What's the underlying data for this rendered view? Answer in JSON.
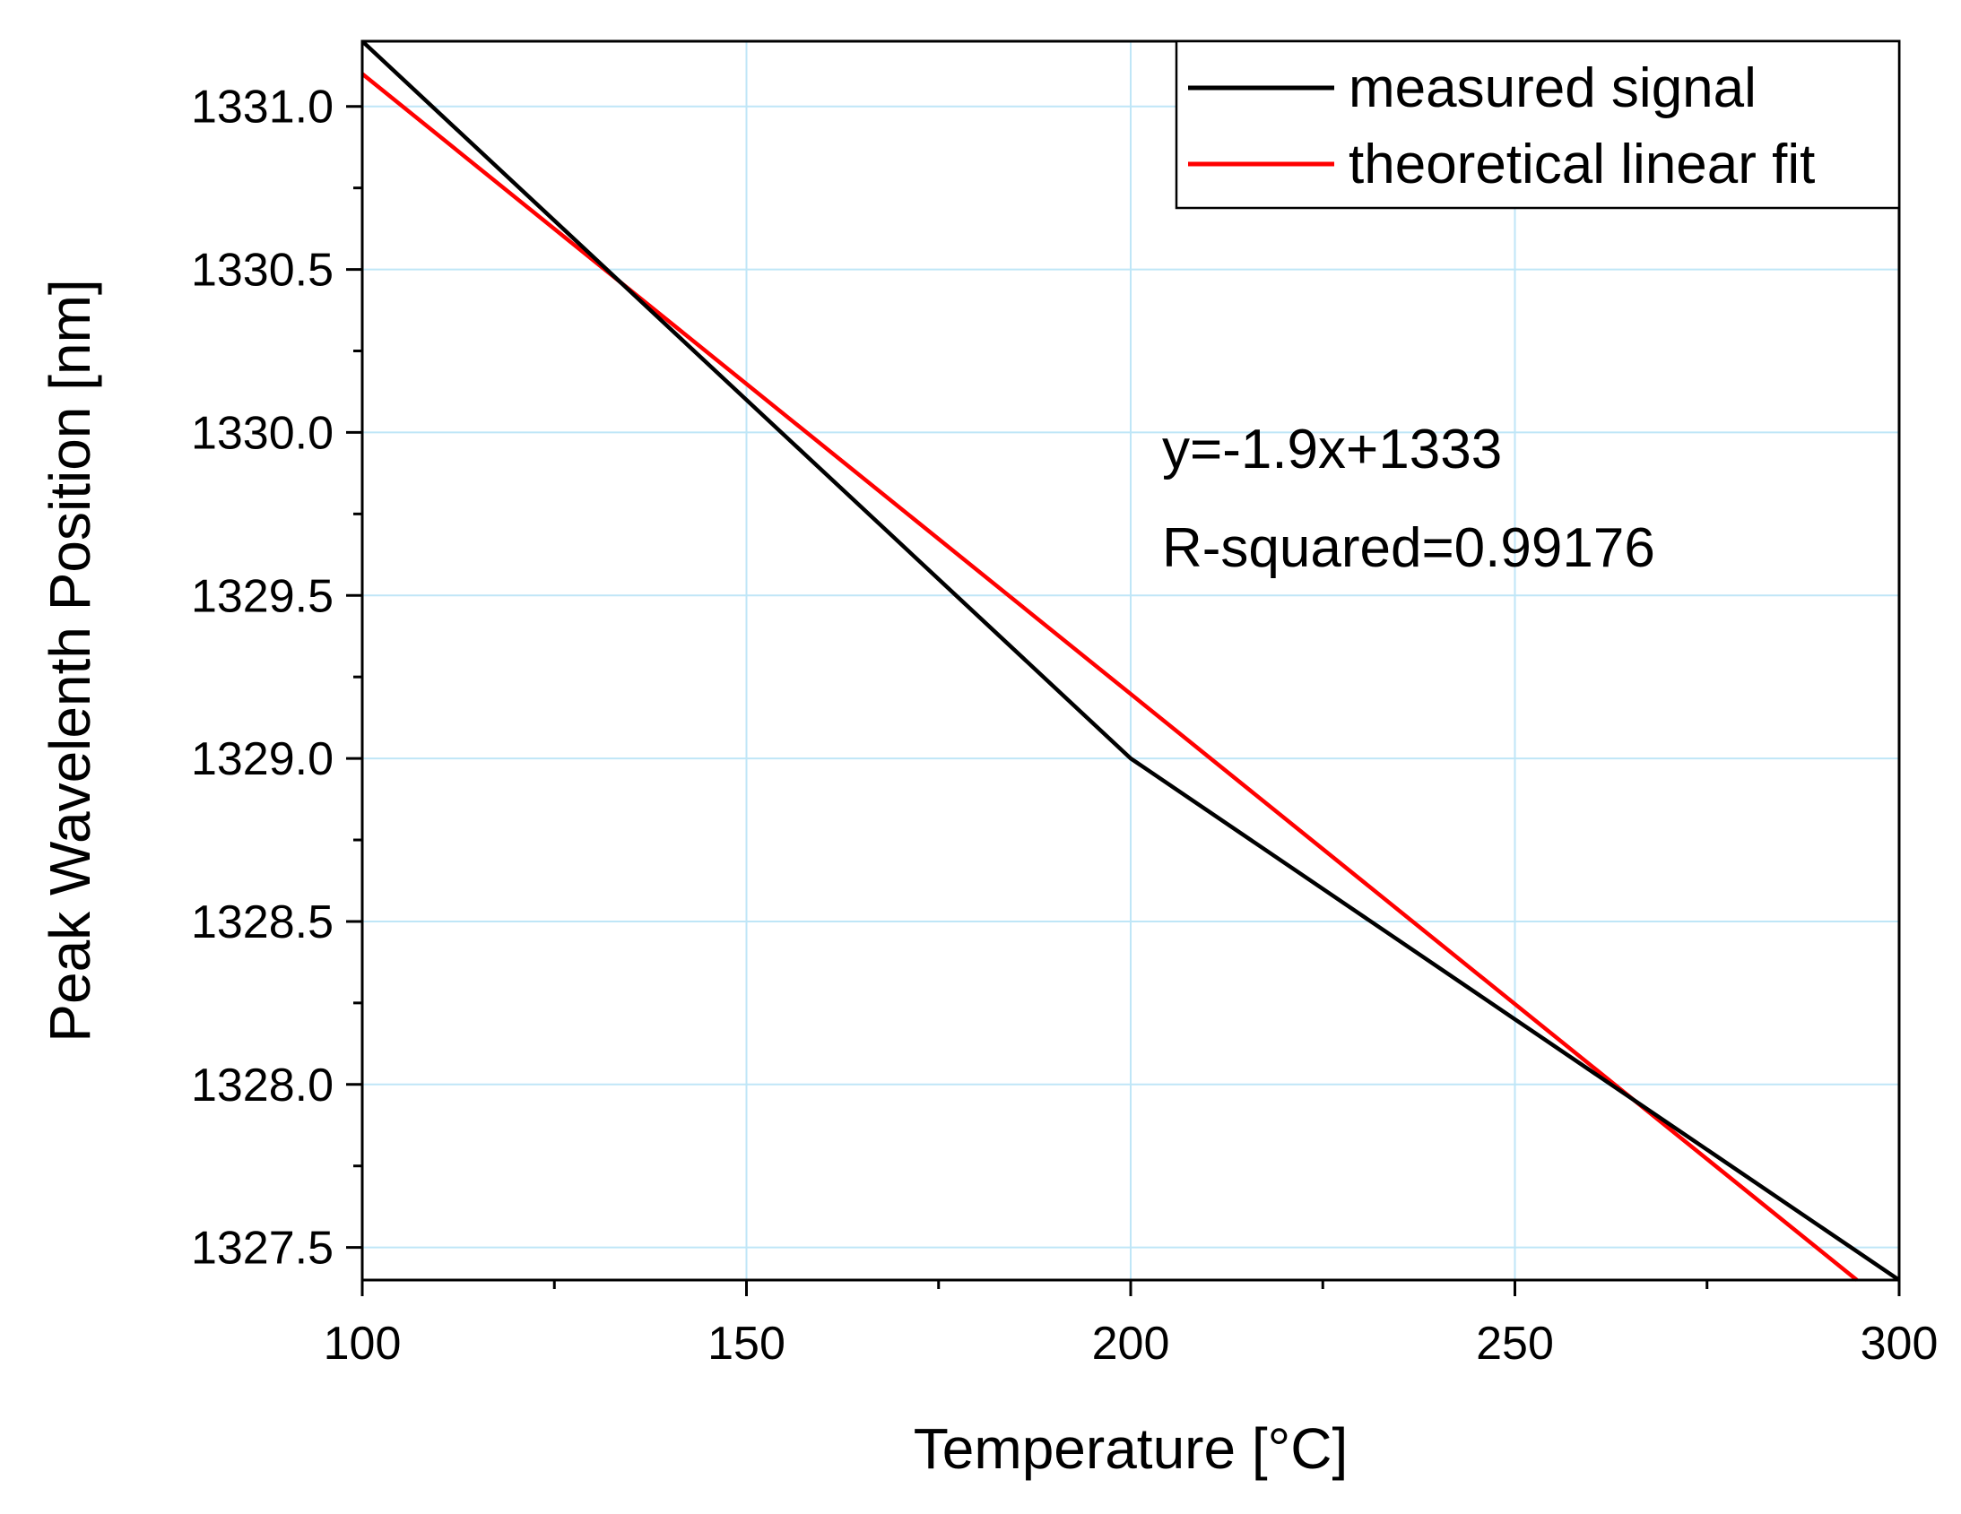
{
  "chart_data": {
    "type": "line",
    "xlabel": "Temperature [°C]",
    "ylabel": "Peak Wavelenth Position [nm]",
    "xlim": [
      100,
      300
    ],
    "ylim": [
      1327.4,
      1331.2
    ],
    "xticks": [
      100,
      150,
      200,
      250,
      300
    ],
    "xtick_labels": [
      "100",
      "150",
      "200",
      "250",
      "300"
    ],
    "yticks": [
      1327.5,
      1328.0,
      1328.5,
      1329.0,
      1329.5,
      1330.0,
      1330.5,
      1331.0
    ],
    "ytick_labels": [
      "1327.5",
      "1328.0",
      "1328.5",
      "1329.0",
      "1329.5",
      "1330.0",
      "1330.5",
      "1331.0"
    ],
    "grid": true,
    "grid_color": "#bfe6f7",
    "legend_position": "top-right",
    "series": [
      {
        "name": "measured signal",
        "color": "#000000",
        "x": [
          100,
          150,
          200,
          250,
          300
        ],
        "y": [
          1331.2,
          1330.1,
          1329.0,
          1328.2,
          1327.4
        ]
      },
      {
        "name": "theoretical linear fit",
        "color": "#ff0000",
        "x": [
          100,
          294.5
        ],
        "y": [
          1331.1,
          1327.4
        ]
      }
    ],
    "annotations": [
      {
        "text": "y=-1.9x+1333"
      },
      {
        "text": "R-squared=0.99176"
      }
    ]
  }
}
